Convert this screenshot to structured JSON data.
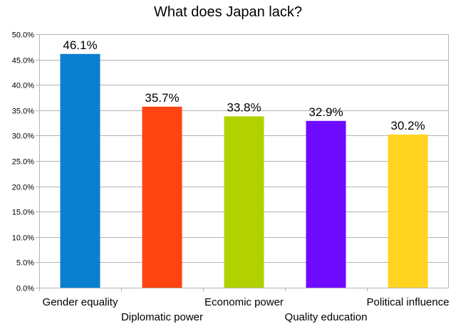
{
  "chart_data": {
    "type": "bar",
    "title": "What does Japan lack?",
    "categories": [
      "Gender equality",
      "Diplomatic power",
      "Economic power",
      "Quality education",
      "Political influence"
    ],
    "values": [
      46.1,
      35.7,
      33.8,
      32.9,
      30.2
    ],
    "value_labels": [
      "46.1%",
      "35.7%",
      "33.8%",
      "32.9%",
      "30.2%"
    ],
    "colors": [
      "#0a7fcf",
      "#ff4411",
      "#b2d200",
      "#6e0aff",
      "#ffd320"
    ],
    "ylim": [
      0,
      50
    ],
    "yticks": [
      0,
      5,
      10,
      15,
      20,
      25,
      30,
      35,
      40,
      45,
      50
    ],
    "ytick_labels": [
      "0.0%",
      "5.0%",
      "10.0%",
      "15.0%",
      "20.0%",
      "25.0%",
      "30.0%",
      "35.0%",
      "40.0%",
      "45.0%",
      "50.0%"
    ],
    "grid": true,
    "xlabel": "",
    "ylabel": ""
  }
}
